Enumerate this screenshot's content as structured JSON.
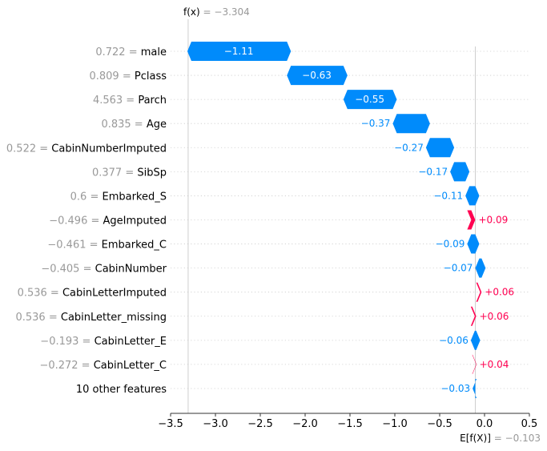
{
  "chart_data": {
    "type": "waterfall",
    "fx": {
      "label": "f(x)",
      "value": "−3.304",
      "numeric": -3.304
    },
    "base": {
      "label": "E[f(X)]",
      "value": "−0.103",
      "numeric": -0.103
    },
    "xlim": [
      -3.5,
      0.5
    ],
    "ticks": [
      {
        "value": -3.5,
        "label": "−3.5"
      },
      {
        "value": -3.0,
        "label": "−3.0"
      },
      {
        "value": -2.5,
        "label": "−2.5"
      },
      {
        "value": -2.0,
        "label": "−2.0"
      },
      {
        "value": -1.5,
        "label": "−1.5"
      },
      {
        "value": -1.0,
        "label": "−1.0"
      },
      {
        "value": -0.5,
        "label": "−0.5"
      },
      {
        "value": 0.0,
        "label": "0.0"
      },
      {
        "value": 0.5,
        "label": "0.5"
      }
    ],
    "colors": {
      "negative": "#008bfb",
      "positive": "#ff0051"
    },
    "features": [
      {
        "value": "0.722",
        "name": "male",
        "contribution": -1.11,
        "label": "−1.11"
      },
      {
        "value": "0.809",
        "name": "Pclass",
        "contribution": -0.63,
        "label": "−0.63"
      },
      {
        "value": "4.563",
        "name": "Parch",
        "contribution": -0.55,
        "label": "−0.55"
      },
      {
        "value": "0.835",
        "name": "Age",
        "contribution": -0.37,
        "label": "−0.37"
      },
      {
        "value": "0.522",
        "name": "CabinNumberImputed",
        "contribution": -0.27,
        "label": "−0.27"
      },
      {
        "value": "0.377",
        "name": "SibSp",
        "contribution": -0.17,
        "label": "−0.17"
      },
      {
        "value": "0.6",
        "name": "Embarked_S",
        "contribution": -0.11,
        "label": "−0.11"
      },
      {
        "value": "−0.496",
        "name": "AgeImputed",
        "contribution": 0.09,
        "label": "+0.09"
      },
      {
        "value": "−0.461",
        "name": "Embarked_C",
        "contribution": -0.09,
        "label": "−0.09"
      },
      {
        "value": "−0.405",
        "name": "CabinNumber",
        "contribution": -0.07,
        "label": "−0.07"
      },
      {
        "value": "0.536",
        "name": "CabinLetterImputed",
        "contribution": 0.06,
        "label": "+0.06"
      },
      {
        "value": "0.536",
        "name": "CabinLetter_missing",
        "contribution": 0.06,
        "label": "+0.06"
      },
      {
        "value": "−0.193",
        "name": "CabinLetter_E",
        "contribution": -0.06,
        "label": "−0.06"
      },
      {
        "value": "−0.272",
        "name": "CabinLetter_C",
        "contribution": 0.04,
        "label": "+0.04"
      },
      {
        "value": "",
        "name": "10 other features",
        "contribution": -0.03,
        "label": "−0.03"
      }
    ]
  }
}
